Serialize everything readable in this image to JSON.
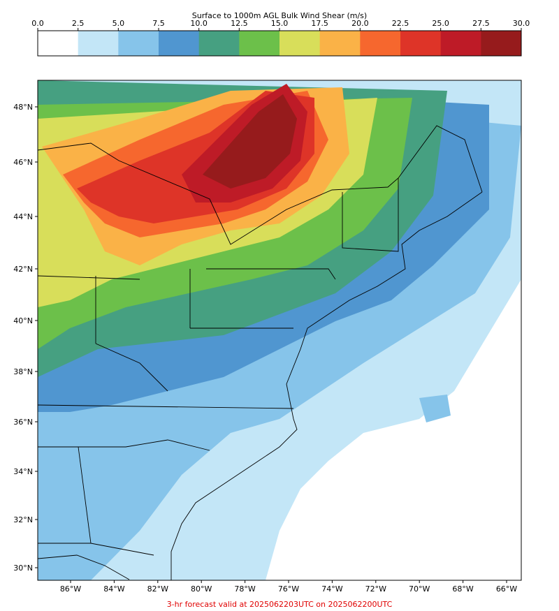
{
  "colorbar": {
    "title": "Surface to 1000m AGL Bulk Wind Shear (m/s)",
    "ticks": [
      "0.0",
      "2.5",
      "5.0",
      "7.5",
      "10.0",
      "12.5",
      "15.0",
      "17.5",
      "20.0",
      "22.5",
      "25.0",
      "27.5",
      "30.0"
    ],
    "colors": [
      "#ffffff",
      "#c3e6f7",
      "#86c4ea",
      "#5096d0",
      "#46a081",
      "#6cc04a",
      "#d8de5a",
      "#fab247",
      "#f6672e",
      "#de3428",
      "#be1b27",
      "#961b1c"
    ]
  },
  "map": {
    "lon_labels": [
      "86°W",
      "84°W",
      "82°W",
      "80°W",
      "78°W",
      "76°W",
      "74°W",
      "72°W",
      "70°W",
      "68°W",
      "66°W"
    ],
    "lat_labels": [
      "48°N",
      "46°N",
      "44°N",
      "42°N",
      "40°N",
      "38°N",
      "36°N",
      "34°N",
      "32°N",
      "30°N"
    ],
    "ocean_color": "#ffffff"
  },
  "footer": {
    "text": "3-hr forecast valid at 2025062203UTC on 2025062200UTC"
  }
}
